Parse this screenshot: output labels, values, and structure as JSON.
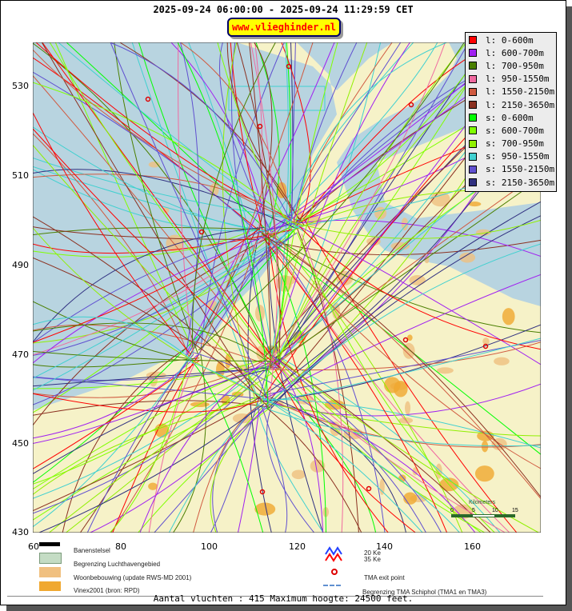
{
  "header": {
    "title": "2025-09-24 06:00:00 - 2025-09-24 11:29:59 CET",
    "site": "www.vlieghinder.nl"
  },
  "legend": [
    {
      "label": "l: 0-600m",
      "color": "#ff0000"
    },
    {
      "label": "l: 600-700m",
      "color": "#a020f0"
    },
    {
      "label": "l: 700-950m",
      "color": "#4a7f00"
    },
    {
      "label": "l: 950-1550m",
      "color": "#f06aa0"
    },
    {
      "label": "l: 1550-2150m",
      "color": "#d05a40"
    },
    {
      "label": "l: 2150-3650m",
      "color": "#8b3020"
    },
    {
      "label": "s: 0-600m",
      "color": "#00ff00"
    },
    {
      "label": "s: 600-700m",
      "color": "#80ff00"
    },
    {
      "label": "s: 700-950m",
      "color": "#90f000"
    },
    {
      "label": "s: 950-1550m",
      "color": "#40d0d0"
    },
    {
      "label": "s: 1550-2150m",
      "color": "#6050d0"
    },
    {
      "label": "s: 2150-3650m",
      "color": "#303080"
    }
  ],
  "axes": {
    "x_ticks": [
      "60",
      "80",
      "100",
      "120",
      "140",
      "160"
    ],
    "y_ticks": [
      "530",
      "510",
      "490",
      "470",
      "450",
      "430"
    ]
  },
  "scale": {
    "title": "Kilometers",
    "ticks": [
      "0",
      "5",
      "10",
      "15"
    ]
  },
  "map_legend": {
    "runways": "Banenstelsel",
    "airport_boundary": "Begrenzing Luchthavengebied",
    "housing": "Woonbebouwing (update RWS-MD 2001)",
    "vinex": "Vinex2001 (bron: RPD)",
    "noise_20": "20 Ke",
    "noise_35": "35 Ke",
    "exit_point": "TMA exit point",
    "tma_boundary": "Begrenzing TMA Schiphol  (TMA1 en TMA3)"
  },
  "footer": "Aantal vluchten : 415 Maximum hoogte: 24500 feet."
}
